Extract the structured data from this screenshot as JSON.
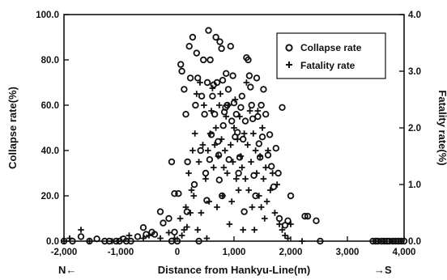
{
  "chart_data": {
    "type": "scatter",
    "xlabel": "Distance from Hankyu-Line(m)",
    "ylabel_left": "Collapse rate(%)",
    "ylabel_right": "Fatality rate(%)",
    "xlim": [
      -2000,
      4000
    ],
    "ylim_left": [
      0,
      100
    ],
    "ylim_right": [
      0,
      4
    ],
    "x_ticks": [
      -2000,
      -1000,
      0,
      1000,
      2000,
      3000,
      4000
    ],
    "x_tick_labels": [
      "-2,000",
      "-1,000",
      "0",
      "1,000",
      "2,000",
      "3,000",
      "4,000"
    ],
    "y_left_ticks": [
      0,
      20,
      40,
      60,
      80,
      100
    ],
    "y_left_tick_labels": [
      "0.0",
      "20.0",
      "40.0",
      "60.0",
      "80.0",
      "100.0"
    ],
    "y_right_ticks": [
      0,
      1,
      2,
      3,
      4
    ],
    "y_right_tick_labels": [
      "0.0",
      "1.0",
      "2.0",
      "3.0",
      "4.0"
    ],
    "direction_labels": {
      "north": "N←",
      "south": "→S"
    },
    "legend_position": "top-right",
    "grid": false,
    "series": [
      {
        "name": "Collapse rate",
        "marker": "circle",
        "axis": "left",
        "points": [
          [
            -2000,
            0
          ],
          [
            -1850,
            0
          ],
          [
            -1700,
            2
          ],
          [
            -1550,
            0
          ],
          [
            -1420,
            1
          ],
          [
            -1280,
            0
          ],
          [
            -1200,
            0
          ],
          [
            -1080,
            0
          ],
          [
            -1020,
            0
          ],
          [
            -950,
            1
          ],
          [
            -900,
            0
          ],
          [
            -820,
            0
          ],
          [
            -700,
            2
          ],
          [
            -600,
            6
          ],
          [
            -550,
            3
          ],
          [
            -450,
            4
          ],
          [
            -400,
            3
          ],
          [
            -300,
            13
          ],
          [
            -250,
            8
          ],
          [
            -150,
            10
          ],
          [
            -100,
            35
          ],
          [
            -50,
            21
          ],
          [
            -100,
            0
          ],
          [
            -50,
            4
          ],
          [
            0,
            0
          ],
          [
            20,
            21
          ],
          [
            60,
            78
          ],
          [
            80,
            75
          ],
          [
            120,
            67
          ],
          [
            150,
            56
          ],
          [
            170,
            13
          ],
          [
            180,
            35
          ],
          [
            210,
            86
          ],
          [
            230,
            72
          ],
          [
            270,
            90
          ],
          [
            300,
            25
          ],
          [
            320,
            60
          ],
          [
            340,
            83
          ],
          [
            360,
            72
          ],
          [
            380,
            0
          ],
          [
            410,
            40
          ],
          [
            430,
            64
          ],
          [
            460,
            80
          ],
          [
            480,
            56
          ],
          [
            500,
            30
          ],
          [
            520,
            18
          ],
          [
            530,
            70
          ],
          [
            550,
            93
          ],
          [
            570,
            36
          ],
          [
            580,
            80
          ],
          [
            600,
            47
          ],
          [
            620,
            64
          ],
          [
            640,
            69
          ],
          [
            660,
            56
          ],
          [
            680,
            90
          ],
          [
            700,
            70
          ],
          [
            720,
            44
          ],
          [
            730,
            38
          ],
          [
            740,
            27
          ],
          [
            750,
            88
          ],
          [
            780,
            85
          ],
          [
            790,
            20
          ],
          [
            800,
            71
          ],
          [
            810,
            51
          ],
          [
            830,
            57
          ],
          [
            850,
            59
          ],
          [
            860,
            74
          ],
          [
            880,
            60
          ],
          [
            900,
            67
          ],
          [
            910,
            36
          ],
          [
            940,
            86
          ],
          [
            960,
            53
          ],
          [
            980,
            73
          ],
          [
            1000,
            61
          ],
          [
            1020,
            46
          ],
          [
            1040,
            56
          ],
          [
            1060,
            48
          ],
          [
            1080,
            30
          ],
          [
            1100,
            37
          ],
          [
            1120,
            59
          ],
          [
            1140,
            64
          ],
          [
            1160,
            45
          ],
          [
            1180,
            13
          ],
          [
            1200,
            53
          ],
          [
            1220,
            81
          ],
          [
            1250,
            80
          ],
          [
            1270,
            73
          ],
          [
            1290,
            68
          ],
          [
            1310,
            60
          ],
          [
            1330,
            54
          ],
          [
            1350,
            29
          ],
          [
            1380,
            20
          ],
          [
            1400,
            72
          ],
          [
            1420,
            55
          ],
          [
            1440,
            43
          ],
          [
            1460,
            37
          ],
          [
            1480,
            60
          ],
          [
            1500,
            46
          ],
          [
            1520,
            67
          ],
          [
            1560,
            56
          ],
          [
            1600,
            38
          ],
          [
            1630,
            47
          ],
          [
            1660,
            33
          ],
          [
            1700,
            24
          ],
          [
            1740,
            41
          ],
          [
            1780,
            30
          ],
          [
            1800,
            10
          ],
          [
            1850,
            59
          ],
          [
            1900,
            7
          ],
          [
            1950,
            9
          ],
          [
            2000,
            20
          ],
          [
            2250,
            11
          ],
          [
            2300,
            11
          ],
          [
            2450,
            9
          ],
          [
            2520,
            0
          ],
          [
            3450,
            0
          ],
          [
            3500,
            0
          ],
          [
            3540,
            0
          ],
          [
            3600,
            0
          ],
          [
            3650,
            0
          ],
          [
            3700,
            0
          ],
          [
            3740,
            0
          ],
          [
            3800,
            0
          ],
          [
            3850,
            0
          ],
          [
            3900,
            0
          ],
          [
            3950,
            0
          ],
          [
            4000,
            0
          ]
        ]
      },
      {
        "name": "Fatality rate",
        "marker": "plus",
        "axis": "right",
        "points": [
          [
            -2000,
            0
          ],
          [
            -1900,
            0.05
          ],
          [
            -1700,
            0.2
          ],
          [
            -1550,
            0
          ],
          [
            -1150,
            0
          ],
          [
            -1050,
            0
          ],
          [
            -850,
            0.1
          ],
          [
            -600,
            0.05
          ],
          [
            -500,
            0.1
          ],
          [
            -300,
            0.05
          ],
          [
            -150,
            0.15
          ],
          [
            -50,
            0.05
          ],
          [
            50,
            0.4
          ],
          [
            80,
            0.1
          ],
          [
            120,
            0.2
          ],
          [
            150,
            0.6
          ],
          [
            170,
            0.25
          ],
          [
            200,
            1.2
          ],
          [
            230,
            0.5
          ],
          [
            250,
            0.9
          ],
          [
            270,
            1.6
          ],
          [
            290,
            0.8
          ],
          [
            310,
            1.9
          ],
          [
            340,
            2.6
          ],
          [
            360,
            0.2
          ],
          [
            380,
            1.4
          ],
          [
            400,
            2.8
          ],
          [
            420,
            0.5
          ],
          [
            450,
            1.7
          ],
          [
            470,
            2.4
          ],
          [
            500,
            1.1
          ],
          [
            520,
            0.05
          ],
          [
            540,
            1.6
          ],
          [
            560,
            0.7
          ],
          [
            580,
            1.9
          ],
          [
            600,
            2.3
          ],
          [
            620,
            2.7
          ],
          [
            640,
            1.3
          ],
          [
            660,
            1.7
          ],
          [
            680,
            2.0
          ],
          [
            700,
            0.6
          ],
          [
            720,
            1.5
          ],
          [
            740,
            2.4
          ],
          [
            760,
            2.6
          ],
          [
            780,
            1.8
          ],
          [
            800,
            0.8
          ],
          [
            820,
            1.3
          ],
          [
            840,
            1.6
          ],
          [
            860,
            2.2
          ],
          [
            880,
            1.2
          ],
          [
            900,
            2.4
          ],
          [
            920,
            0.3
          ],
          [
            940,
            1.7
          ],
          [
            960,
            0.7
          ],
          [
            980,
            1.4
          ],
          [
            1000,
            2.0
          ],
          [
            1020,
            2.5
          ],
          [
            1040,
            1.1
          ],
          [
            1060,
            1.8
          ],
          [
            1080,
            0.9
          ],
          [
            1100,
            2.2
          ],
          [
            1120,
            1.5
          ],
          [
            1140,
            1.3
          ],
          [
            1160,
            0.2
          ],
          [
            1180,
            1.9
          ],
          [
            1200,
            1.1
          ],
          [
            1220,
            2.8
          ],
          [
            1240,
            1.7
          ],
          [
            1260,
            0.9
          ],
          [
            1280,
            2.3
          ],
          [
            1300,
            1.4
          ],
          [
            1320,
            0.6
          ],
          [
            1340,
            1.9
          ],
          [
            1360,
            0.2
          ],
          [
            1380,
            1.6
          ],
          [
            1400,
            1.2
          ],
          [
            1420,
            2.3
          ],
          [
            1440,
            0.8
          ],
          [
            1460,
            1.5
          ],
          [
            1480,
            0.6
          ],
          [
            1500,
            2.0
          ],
          [
            1520,
            1.1
          ],
          [
            1540,
            0.4
          ],
          [
            1560,
            1.3
          ],
          [
            1580,
            0.7
          ],
          [
            1600,
            1.6
          ],
          [
            1640,
            0.9
          ],
          [
            1680,
            1.2
          ],
          [
            1720,
            0.5
          ],
          [
            1760,
            1.0
          ],
          [
            1800,
            0.3
          ],
          [
            1850,
            0.2
          ],
          [
            1900,
            0.1
          ],
          [
            1950,
            0.05
          ],
          [
            2000,
            0.3
          ],
          [
            2200,
            0
          ],
          [
            3500,
            0
          ],
          [
            3650,
            0
          ],
          [
            3800,
            0
          ],
          [
            3950,
            0
          ]
        ]
      }
    ]
  }
}
